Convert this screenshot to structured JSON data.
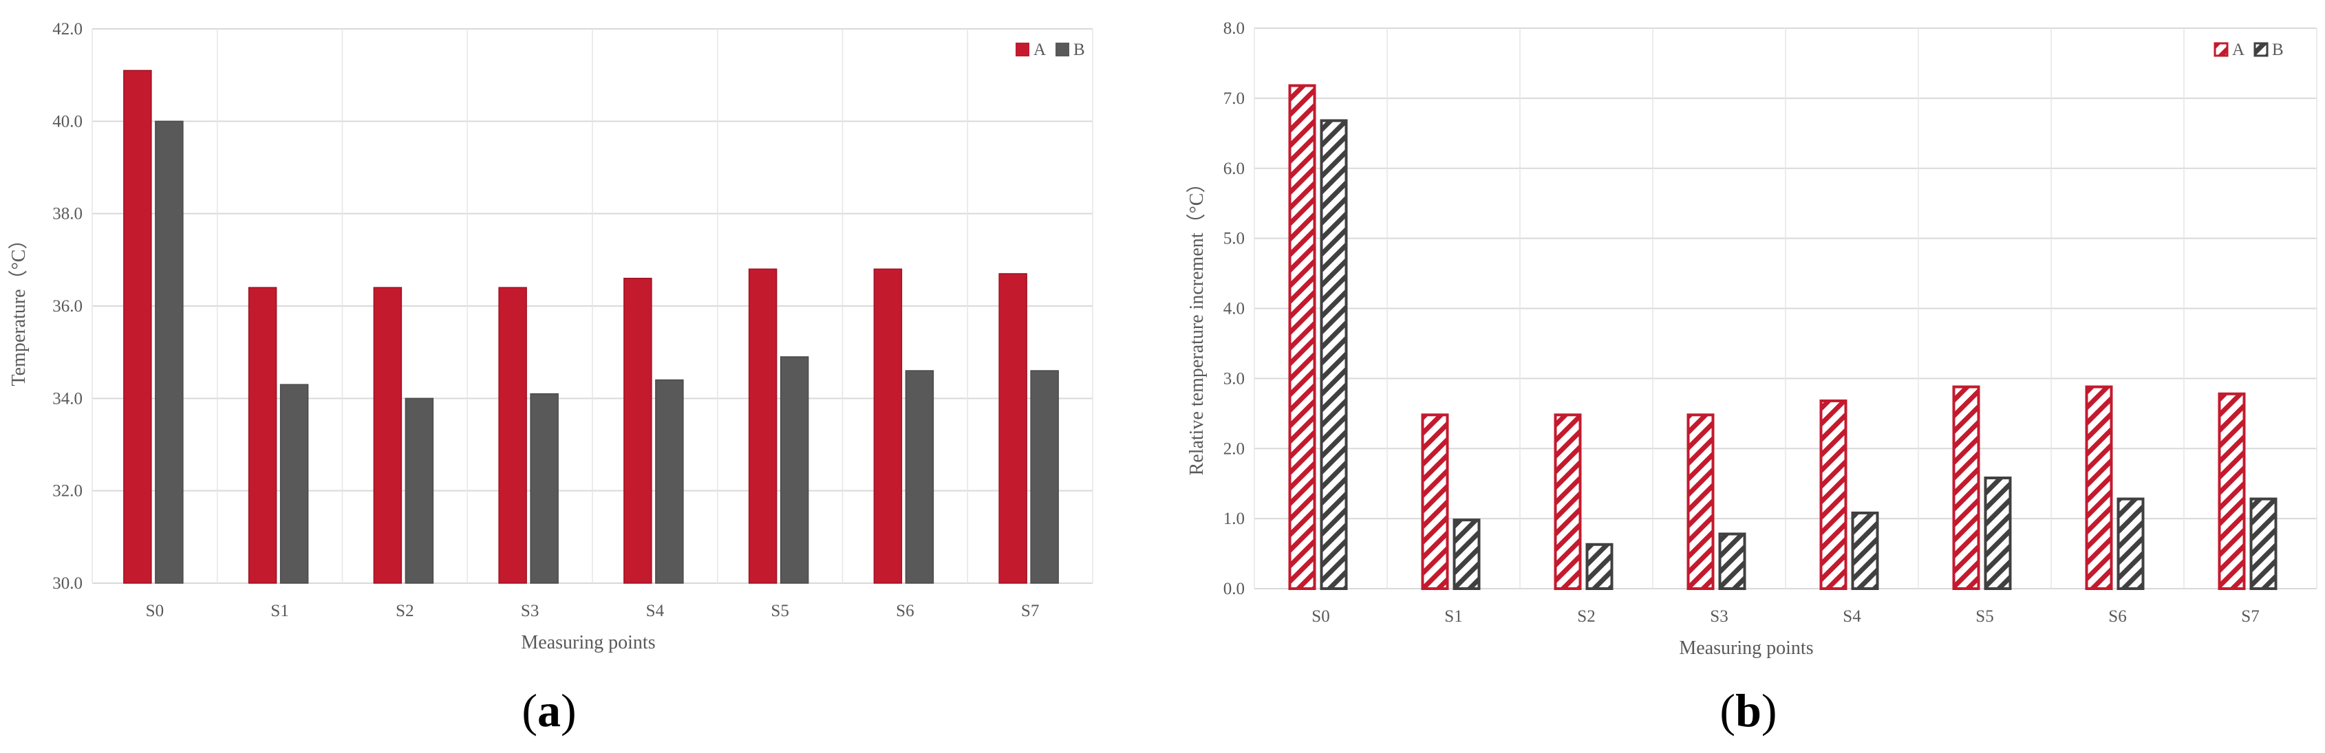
{
  "figure": {
    "colors": {
      "A": "#c31a2e",
      "B": "#595959",
      "grid": "#d9d9d9",
      "text": "#595959"
    }
  },
  "chart_data": [
    {
      "type": "bar",
      "caption": "a",
      "categories": [
        "S0",
        "S1",
        "S2",
        "S3",
        "S4",
        "S5",
        "S6",
        "S7"
      ],
      "series": [
        {
          "name": "A",
          "values": [
            41.1,
            36.4,
            36.4,
            36.4,
            36.6,
            36.8,
            36.8,
            36.7
          ]
        },
        {
          "name": "B",
          "values": [
            40.0,
            34.3,
            34.0,
            34.1,
            34.4,
            34.9,
            34.6,
            34.6
          ]
        }
      ],
      "xlabel": "Measuring points",
      "ylabel": "Temperature（°C）",
      "ylim": [
        30.0,
        42.0
      ],
      "yticks": [
        "30.0",
        "32.0",
        "34.0",
        "36.0",
        "38.0",
        "40.0",
        "42.0"
      ],
      "fill_style": "solid",
      "grid": true,
      "legend_position": "top-right"
    },
    {
      "type": "bar",
      "caption": "b",
      "categories": [
        "S0",
        "S1",
        "S2",
        "S3",
        "S4",
        "S5",
        "S6",
        "S7"
      ],
      "series": [
        {
          "name": "A",
          "values": [
            7.2,
            2.5,
            2.5,
            2.5,
            2.7,
            2.9,
            2.9,
            2.8
          ]
        },
        {
          "name": "B",
          "values": [
            6.7,
            1.0,
            0.65,
            0.8,
            1.1,
            1.6,
            1.3,
            1.3
          ]
        }
      ],
      "xlabel": "Measuring points",
      "ylabel": "Relative temperature increment（°C）",
      "ylim": [
        0.0,
        8.0
      ],
      "yticks": [
        "0.0",
        "1.0",
        "2.0",
        "3.0",
        "4.0",
        "5.0",
        "6.0",
        "7.0",
        "8.0"
      ],
      "fill_style": "hatched",
      "grid": true,
      "legend_position": "top-right"
    }
  ]
}
